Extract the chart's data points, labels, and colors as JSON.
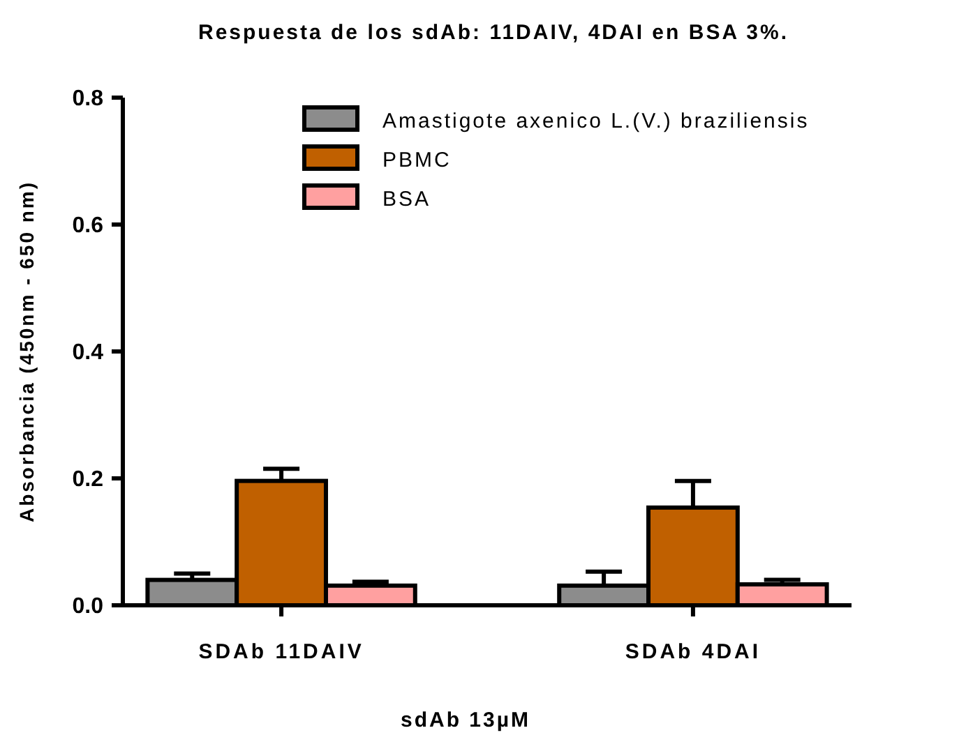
{
  "chart_data": {
    "type": "bar",
    "title": "Respuesta de los sdAb: 11DAIV, 4DAI en BSA 3%.",
    "xlabel": "sdAb 13µM",
    "ylabel": "Absorbancia (450nm - 650 nm)",
    "categories": [
      "SDAb 11DAIV",
      "SDAb 4DAI"
    ],
    "series": [
      {
        "name": "Amastigote axenico L.(V.) braziliensis",
        "color": "#8c8c8c",
        "values": [
          0.04,
          0.031
        ],
        "errors": [
          0.01,
          0.022
        ]
      },
      {
        "name": "PBMC",
        "color": "#c06000",
        "values": [
          0.196,
          0.154
        ],
        "errors": [
          0.019,
          0.042
        ]
      },
      {
        "name": "BSA",
        "color": "#ffa0a0",
        "values": [
          0.031,
          0.033
        ],
        "errors": [
          0.006,
          0.007
        ]
      }
    ],
    "ylim": [
      0,
      0.8
    ],
    "yticks": [
      {
        "value": 0,
        "label": "0.0"
      },
      {
        "value": 0.2,
        "label": "0.2"
      },
      {
        "value": 0.4,
        "label": "0.4"
      },
      {
        "value": 0.6,
        "label": "0.6"
      },
      {
        "value": 0.8,
        "label": "0.8"
      }
    ],
    "grid": false,
    "legend": "top right"
  }
}
